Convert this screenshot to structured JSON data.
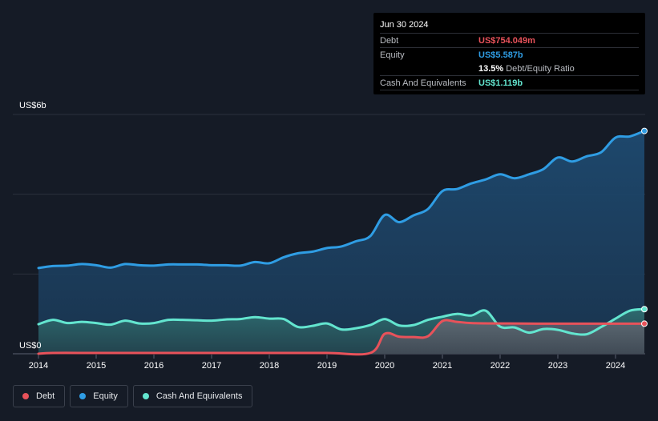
{
  "tooltip": {
    "date": "Jun 30 2024",
    "rows": [
      {
        "label": "Debt",
        "value": "US$754.049m",
        "color": "#e8525a"
      },
      {
        "label": "Equity",
        "value": "US$5.587b",
        "color": "#2f9de4"
      }
    ],
    "ratio_value": "13.5%",
    "ratio_label": "Debt/Equity Ratio",
    "cash_label": "Cash And Equivalents",
    "cash_value": "US$1.119b",
    "cash_color": "#63e5cf"
  },
  "legend": [
    {
      "label": "Debt",
      "color": "#e8525a"
    },
    {
      "label": "Equity",
      "color": "#2f9de4"
    },
    {
      "label": "Cash And Equivalents",
      "color": "#63e5cf"
    }
  ],
  "chart_data": {
    "type": "area",
    "y_axis_labels": [
      "US$6b",
      "US$0"
    ],
    "ylim": [
      0,
      6
    ],
    "xlim": [
      2014,
      2024.5
    ],
    "x_ticks": [
      "2014",
      "2015",
      "2016",
      "2017",
      "2018",
      "2019",
      "2020",
      "2021",
      "2022",
      "2023",
      "2024"
    ],
    "grid": true,
    "series": [
      {
        "name": "Equity",
        "color": "#2f9de4",
        "points": [
          [
            2014.0,
            2.15
          ],
          [
            2014.25,
            2.2
          ],
          [
            2014.5,
            2.21
          ],
          [
            2014.75,
            2.25
          ],
          [
            2015.0,
            2.22
          ],
          [
            2015.25,
            2.16
          ],
          [
            2015.5,
            2.25
          ],
          [
            2015.75,
            2.22
          ],
          [
            2016.0,
            2.21
          ],
          [
            2016.25,
            2.24
          ],
          [
            2016.5,
            2.24
          ],
          [
            2016.75,
            2.24
          ],
          [
            2017.0,
            2.22
          ],
          [
            2017.25,
            2.22
          ],
          [
            2017.5,
            2.21
          ],
          [
            2017.75,
            2.3
          ],
          [
            2018.0,
            2.27
          ],
          [
            2018.25,
            2.42
          ],
          [
            2018.5,
            2.52
          ],
          [
            2018.75,
            2.56
          ],
          [
            2019.0,
            2.65
          ],
          [
            2019.25,
            2.69
          ],
          [
            2019.5,
            2.82
          ],
          [
            2019.75,
            2.95
          ],
          [
            2020.0,
            3.48
          ],
          [
            2020.25,
            3.3
          ],
          [
            2020.5,
            3.47
          ],
          [
            2020.75,
            3.63
          ],
          [
            2021.0,
            4.08
          ],
          [
            2021.25,
            4.13
          ],
          [
            2021.5,
            4.27
          ],
          [
            2021.75,
            4.37
          ],
          [
            2022.0,
            4.5
          ],
          [
            2022.25,
            4.4
          ],
          [
            2022.5,
            4.5
          ],
          [
            2022.75,
            4.63
          ],
          [
            2023.0,
            4.92
          ],
          [
            2023.25,
            4.82
          ],
          [
            2023.5,
            4.95
          ],
          [
            2023.75,
            5.05
          ],
          [
            2024.0,
            5.42
          ],
          [
            2024.25,
            5.45
          ],
          [
            2024.5,
            5.587
          ]
        ]
      },
      {
        "name": "Cash And Equivalents",
        "color": "#63e5cf",
        "points": [
          [
            2014.0,
            0.74
          ],
          [
            2014.25,
            0.85
          ],
          [
            2014.5,
            0.77
          ],
          [
            2014.75,
            0.8
          ],
          [
            2015.0,
            0.77
          ],
          [
            2015.25,
            0.73
          ],
          [
            2015.5,
            0.83
          ],
          [
            2015.75,
            0.76
          ],
          [
            2016.0,
            0.77
          ],
          [
            2016.25,
            0.85
          ],
          [
            2016.5,
            0.85
          ],
          [
            2016.75,
            0.84
          ],
          [
            2017.0,
            0.83
          ],
          [
            2017.25,
            0.86
          ],
          [
            2017.5,
            0.87
          ],
          [
            2017.75,
            0.92
          ],
          [
            2018.0,
            0.88
          ],
          [
            2018.25,
            0.87
          ],
          [
            2018.5,
            0.67
          ],
          [
            2018.75,
            0.7
          ],
          [
            2019.0,
            0.76
          ],
          [
            2019.25,
            0.61
          ],
          [
            2019.5,
            0.64
          ],
          [
            2019.75,
            0.72
          ],
          [
            2020.0,
            0.87
          ],
          [
            2020.25,
            0.71
          ],
          [
            2020.5,
            0.72
          ],
          [
            2020.75,
            0.85
          ],
          [
            2021.0,
            0.93
          ],
          [
            2021.25,
            1.0
          ],
          [
            2021.5,
            0.96
          ],
          [
            2021.75,
            1.08
          ],
          [
            2022.0,
            0.68
          ],
          [
            2022.25,
            0.66
          ],
          [
            2022.5,
            0.53
          ],
          [
            2022.75,
            0.62
          ],
          [
            2023.0,
            0.6
          ],
          [
            2023.25,
            0.51
          ],
          [
            2023.5,
            0.49
          ],
          [
            2023.75,
            0.67
          ],
          [
            2024.0,
            0.88
          ],
          [
            2024.25,
            1.08
          ],
          [
            2024.5,
            1.119
          ]
        ]
      },
      {
        "name": "Debt",
        "color": "#e8525a",
        "points": [
          [
            2014.0,
            0.0
          ],
          [
            2014.25,
            0.02
          ],
          [
            2015.0,
            0.02
          ],
          [
            2016.0,
            0.02
          ],
          [
            2017.0,
            0.02
          ],
          [
            2018.0,
            0.02
          ],
          [
            2019.0,
            0.02
          ],
          [
            2019.75,
            0.02
          ],
          [
            2020.0,
            0.5
          ],
          [
            2020.25,
            0.43
          ],
          [
            2020.5,
            0.42
          ],
          [
            2020.75,
            0.44
          ],
          [
            2021.0,
            0.82
          ],
          [
            2021.25,
            0.8
          ],
          [
            2021.5,
            0.77
          ],
          [
            2022.0,
            0.76
          ],
          [
            2023.0,
            0.755
          ],
          [
            2024.0,
            0.754
          ],
          [
            2024.5,
            0.754
          ]
        ]
      }
    ]
  }
}
